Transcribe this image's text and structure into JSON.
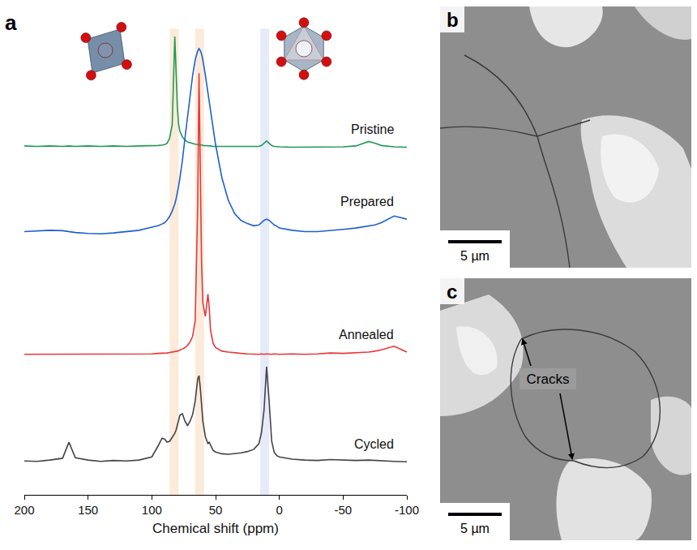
{
  "chart_data": {
    "type": "line",
    "x_label": "Chemical shift (ppm)",
    "x": [
      200,
      190,
      180,
      170,
      165,
      160,
      150,
      140,
      130,
      120,
      110,
      100,
      95,
      92,
      90,
      88,
      86,
      84,
      83,
      82,
      81,
      80,
      79,
      78,
      76,
      74,
      72,
      70,
      68,
      66,
      64,
      63,
      62,
      61,
      60,
      58,
      56,
      55,
      54,
      52,
      50,
      45,
      40,
      35,
      30,
      25,
      20,
      16,
      14,
      12,
      10,
      8,
      6,
      4,
      2,
      0,
      -10,
      -20,
      -30,
      -40,
      -50,
      -60,
      -70,
      -75,
      -80,
      -90,
      -100
    ],
    "series": [
      {
        "name": "Pristine",
        "color": "#1f9a55",
        "values": [
          78.2,
          78.1,
          78.2,
          78.1,
          78.2,
          78.1,
          78.2,
          78.1,
          78.2,
          78.1,
          78.2,
          78.2,
          78.3,
          78.4,
          78.5,
          78.8,
          80,
          83,
          91,
          102.7,
          95,
          87,
          83,
          81.5,
          80.2,
          79.5,
          79.1,
          78.9,
          78.7,
          78.6,
          78.5,
          78.5,
          78.4,
          78.4,
          78.3,
          78.3,
          78.2,
          78.2,
          78.2,
          78.1,
          78.1,
          78,
          78,
          78,
          78,
          78,
          78,
          78.1,
          78.3,
          78.8,
          79.3,
          78.8,
          78.3,
          78.1,
          78,
          78,
          77.9,
          77.9,
          78,
          77.9,
          78,
          78.2,
          79.2,
          78.8,
          78.3,
          78,
          77.9
        ]
      },
      {
        "name": "Prepared",
        "color": "#1f5fd1",
        "values": [
          59,
          59.2,
          59.3,
          59.2,
          59,
          58.8,
          58.6,
          58.5,
          58.7,
          59,
          59.3,
          60,
          60.3,
          60.7,
          61,
          61.6,
          62.4,
          63.6,
          64.3,
          65.2,
          66.3,
          67.5,
          69.2,
          71,
          75,
          80,
          85,
          89.5,
          94,
          97.5,
          99.5,
          100,
          99.6,
          98.8,
          97.5,
          94,
          90,
          88,
          86,
          82,
          78.5,
          71,
          66,
          63,
          61.5,
          60.8,
          60.3,
          60.5,
          61,
          61.5,
          61.8,
          61.5,
          61,
          60.5,
          60.2,
          59.8,
          59.3,
          59,
          59,
          59.2,
          59.5,
          59.8,
          60.2,
          60.5,
          61,
          62.5,
          61.8
        ]
      },
      {
        "name": "Annealed",
        "color": "#e8373a",
        "values": [
          31.5,
          31.5,
          31.6,
          31.5,
          31.5,
          31.6,
          31.5,
          31.5,
          31.6,
          31.5,
          31.6,
          31.6,
          31.7,
          31.7,
          31.8,
          31.8,
          31.9,
          32,
          32,
          32,
          32.1,
          32.2,
          32.3,
          32.4,
          32.7,
          33,
          33.5,
          34.3,
          35.5,
          39,
          65,
          94.5,
          72,
          52,
          43,
          40,
          45,
          42,
          37,
          34,
          33,
          32.2,
          32,
          31.8,
          31.7,
          31.6,
          31.5,
          31.5,
          31.6,
          31.5,
          31.6,
          31.5,
          31.5,
          31.6,
          31.5,
          31.5,
          31.6,
          31.5,
          31.6,
          31.8,
          31.7,
          31.8,
          32,
          32.2,
          32.5,
          33.3,
          32
        ]
      },
      {
        "name": "Cycled",
        "color": "#444444",
        "values": [
          7.6,
          7.5,
          7.8,
          8.2,
          11.8,
          8.3,
          7.8,
          7.5,
          7.7,
          7.6,
          7.8,
          8.5,
          11,
          12.7,
          12.5,
          11.8,
          12,
          12.8,
          13.2,
          13.8,
          14.5,
          15.5,
          16.8,
          17.8,
          18.2,
          16.5,
          15.5,
          16.5,
          18,
          21,
          26,
          26.7,
          24,
          20,
          16.5,
          13,
          11.5,
          11.8,
          11.2,
          10,
          9.6,
          9.2,
          9.1,
          9.2,
          9.4,
          9.7,
          10.2,
          11.5,
          14,
          19,
          28.7,
          21,
          12,
          9.5,
          8.8,
          8.5,
          8,
          7.8,
          7.7,
          7.9,
          7.8,
          7.7,
          7.8,
          7.7,
          7.6,
          7.5,
          7.4
        ]
      }
    ],
    "bands": [
      {
        "x": [
          86,
          79
        ],
        "color": "#f9d3ad"
      },
      {
        "x": [
          66,
          59
        ],
        "color": "#f9d3ad"
      },
      {
        "x": [
          15,
          8
        ],
        "color": "#c5d3f2"
      }
    ],
    "xlim": [
      200,
      -100
    ],
    "xticks": [
      200,
      150,
      100,
      50,
      0,
      -50,
      -100
    ],
    "ylim": [
      0,
      110
    ],
    "tick_labels": "x",
    "grid": false
  },
  "figure": {
    "panel_a_label": "a"
  },
  "images": [
    {
      "label": "b",
      "scale_bar": "5 µm"
    },
    {
      "label": "c",
      "scale_bar": "5 µm",
      "annotation": "Cracks"
    }
  ]
}
